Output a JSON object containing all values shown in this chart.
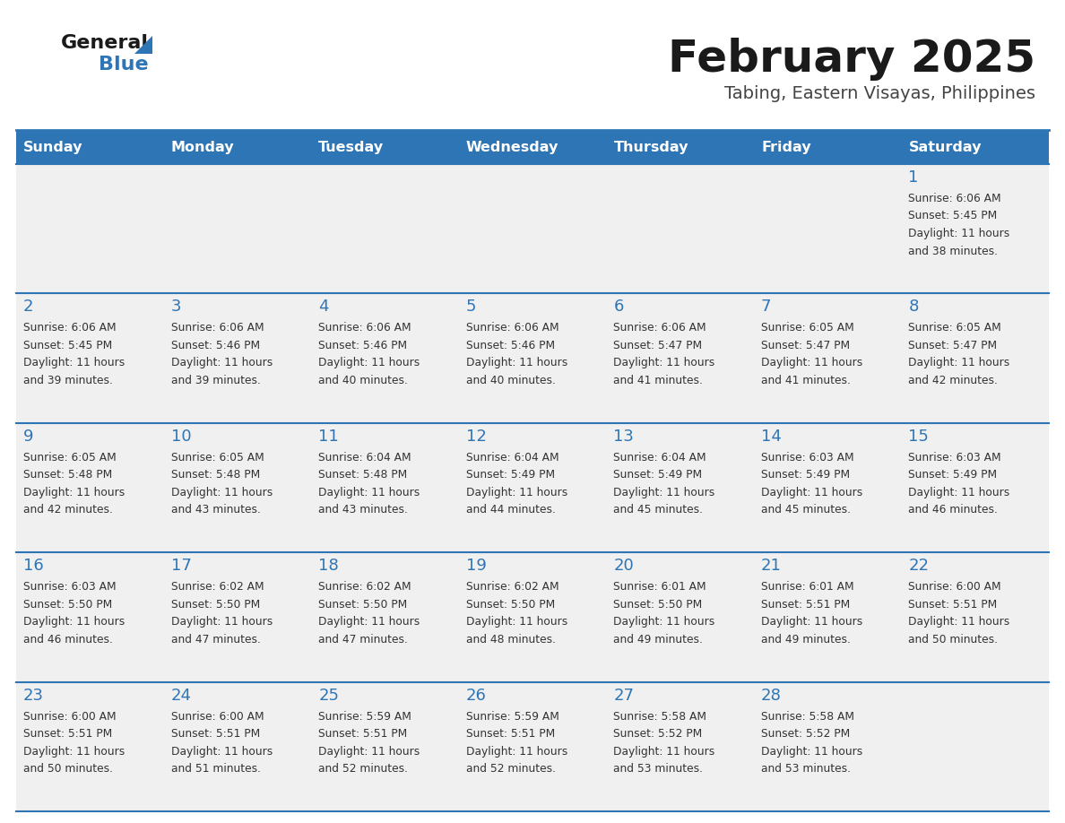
{
  "title": "February 2025",
  "subtitle": "Tabing, Eastern Visayas, Philippines",
  "header_color": "#2e75b6",
  "header_text_color": "#ffffff",
  "cell_bg_color": "#f0f0f0",
  "day_number_color": "#2e75b6",
  "text_color": "#333333",
  "line_color": "#2e75b6",
  "days_of_week": [
    "Sunday",
    "Monday",
    "Tuesday",
    "Wednesday",
    "Thursday",
    "Friday",
    "Saturday"
  ],
  "weeks": [
    [
      {
        "day": null,
        "sunrise": null,
        "sunset": null,
        "daylight_line1": null,
        "daylight_line2": null
      },
      {
        "day": null,
        "sunrise": null,
        "sunset": null,
        "daylight_line1": null,
        "daylight_line2": null
      },
      {
        "day": null,
        "sunrise": null,
        "sunset": null,
        "daylight_line1": null,
        "daylight_line2": null
      },
      {
        "day": null,
        "sunrise": null,
        "sunset": null,
        "daylight_line1": null,
        "daylight_line2": null
      },
      {
        "day": null,
        "sunrise": null,
        "sunset": null,
        "daylight_line1": null,
        "daylight_line2": null
      },
      {
        "day": null,
        "sunrise": null,
        "sunset": null,
        "daylight_line1": null,
        "daylight_line2": null
      },
      {
        "day": 1,
        "sunrise": "Sunrise: 6:06 AM",
        "sunset": "Sunset: 5:45 PM",
        "daylight_line1": "Daylight: 11 hours",
        "daylight_line2": "and 38 minutes."
      }
    ],
    [
      {
        "day": 2,
        "sunrise": "Sunrise: 6:06 AM",
        "sunset": "Sunset: 5:45 PM",
        "daylight_line1": "Daylight: 11 hours",
        "daylight_line2": "and 39 minutes."
      },
      {
        "day": 3,
        "sunrise": "Sunrise: 6:06 AM",
        "sunset": "Sunset: 5:46 PM",
        "daylight_line1": "Daylight: 11 hours",
        "daylight_line2": "and 39 minutes."
      },
      {
        "day": 4,
        "sunrise": "Sunrise: 6:06 AM",
        "sunset": "Sunset: 5:46 PM",
        "daylight_line1": "Daylight: 11 hours",
        "daylight_line2": "and 40 minutes."
      },
      {
        "day": 5,
        "sunrise": "Sunrise: 6:06 AM",
        "sunset": "Sunset: 5:46 PM",
        "daylight_line1": "Daylight: 11 hours",
        "daylight_line2": "and 40 minutes."
      },
      {
        "day": 6,
        "sunrise": "Sunrise: 6:06 AM",
        "sunset": "Sunset: 5:47 PM",
        "daylight_line1": "Daylight: 11 hours",
        "daylight_line2": "and 41 minutes."
      },
      {
        "day": 7,
        "sunrise": "Sunrise: 6:05 AM",
        "sunset": "Sunset: 5:47 PM",
        "daylight_line1": "Daylight: 11 hours",
        "daylight_line2": "and 41 minutes."
      },
      {
        "day": 8,
        "sunrise": "Sunrise: 6:05 AM",
        "sunset": "Sunset: 5:47 PM",
        "daylight_line1": "Daylight: 11 hours",
        "daylight_line2": "and 42 minutes."
      }
    ],
    [
      {
        "day": 9,
        "sunrise": "Sunrise: 6:05 AM",
        "sunset": "Sunset: 5:48 PM",
        "daylight_line1": "Daylight: 11 hours",
        "daylight_line2": "and 42 minutes."
      },
      {
        "day": 10,
        "sunrise": "Sunrise: 6:05 AM",
        "sunset": "Sunset: 5:48 PM",
        "daylight_line1": "Daylight: 11 hours",
        "daylight_line2": "and 43 minutes."
      },
      {
        "day": 11,
        "sunrise": "Sunrise: 6:04 AM",
        "sunset": "Sunset: 5:48 PM",
        "daylight_line1": "Daylight: 11 hours",
        "daylight_line2": "and 43 minutes."
      },
      {
        "day": 12,
        "sunrise": "Sunrise: 6:04 AM",
        "sunset": "Sunset: 5:49 PM",
        "daylight_line1": "Daylight: 11 hours",
        "daylight_line2": "and 44 minutes."
      },
      {
        "day": 13,
        "sunrise": "Sunrise: 6:04 AM",
        "sunset": "Sunset: 5:49 PM",
        "daylight_line1": "Daylight: 11 hours",
        "daylight_line2": "and 45 minutes."
      },
      {
        "day": 14,
        "sunrise": "Sunrise: 6:03 AM",
        "sunset": "Sunset: 5:49 PM",
        "daylight_line1": "Daylight: 11 hours",
        "daylight_line2": "and 45 minutes."
      },
      {
        "day": 15,
        "sunrise": "Sunrise: 6:03 AM",
        "sunset": "Sunset: 5:49 PM",
        "daylight_line1": "Daylight: 11 hours",
        "daylight_line2": "and 46 minutes."
      }
    ],
    [
      {
        "day": 16,
        "sunrise": "Sunrise: 6:03 AM",
        "sunset": "Sunset: 5:50 PM",
        "daylight_line1": "Daylight: 11 hours",
        "daylight_line2": "and 46 minutes."
      },
      {
        "day": 17,
        "sunrise": "Sunrise: 6:02 AM",
        "sunset": "Sunset: 5:50 PM",
        "daylight_line1": "Daylight: 11 hours",
        "daylight_line2": "and 47 minutes."
      },
      {
        "day": 18,
        "sunrise": "Sunrise: 6:02 AM",
        "sunset": "Sunset: 5:50 PM",
        "daylight_line1": "Daylight: 11 hours",
        "daylight_line2": "and 47 minutes."
      },
      {
        "day": 19,
        "sunrise": "Sunrise: 6:02 AM",
        "sunset": "Sunset: 5:50 PM",
        "daylight_line1": "Daylight: 11 hours",
        "daylight_line2": "and 48 minutes."
      },
      {
        "day": 20,
        "sunrise": "Sunrise: 6:01 AM",
        "sunset": "Sunset: 5:50 PM",
        "daylight_line1": "Daylight: 11 hours",
        "daylight_line2": "and 49 minutes."
      },
      {
        "day": 21,
        "sunrise": "Sunrise: 6:01 AM",
        "sunset": "Sunset: 5:51 PM",
        "daylight_line1": "Daylight: 11 hours",
        "daylight_line2": "and 49 minutes."
      },
      {
        "day": 22,
        "sunrise": "Sunrise: 6:00 AM",
        "sunset": "Sunset: 5:51 PM",
        "daylight_line1": "Daylight: 11 hours",
        "daylight_line2": "and 50 minutes."
      }
    ],
    [
      {
        "day": 23,
        "sunrise": "Sunrise: 6:00 AM",
        "sunset": "Sunset: 5:51 PM",
        "daylight_line1": "Daylight: 11 hours",
        "daylight_line2": "and 50 minutes."
      },
      {
        "day": 24,
        "sunrise": "Sunrise: 6:00 AM",
        "sunset": "Sunset: 5:51 PM",
        "daylight_line1": "Daylight: 11 hours",
        "daylight_line2": "and 51 minutes."
      },
      {
        "day": 25,
        "sunrise": "Sunrise: 5:59 AM",
        "sunset": "Sunset: 5:51 PM",
        "daylight_line1": "Daylight: 11 hours",
        "daylight_line2": "and 52 minutes."
      },
      {
        "day": 26,
        "sunrise": "Sunrise: 5:59 AM",
        "sunset": "Sunset: 5:51 PM",
        "daylight_line1": "Daylight: 11 hours",
        "daylight_line2": "and 52 minutes."
      },
      {
        "day": 27,
        "sunrise": "Sunrise: 5:58 AM",
        "sunset": "Sunset: 5:52 PM",
        "daylight_line1": "Daylight: 11 hours",
        "daylight_line2": "and 53 minutes."
      },
      {
        "day": 28,
        "sunrise": "Sunrise: 5:58 AM",
        "sunset": "Sunset: 5:52 PM",
        "daylight_line1": "Daylight: 11 hours",
        "daylight_line2": "and 53 minutes."
      },
      {
        "day": null,
        "sunrise": null,
        "sunset": null,
        "daylight_line1": null,
        "daylight_line2": null
      }
    ]
  ]
}
